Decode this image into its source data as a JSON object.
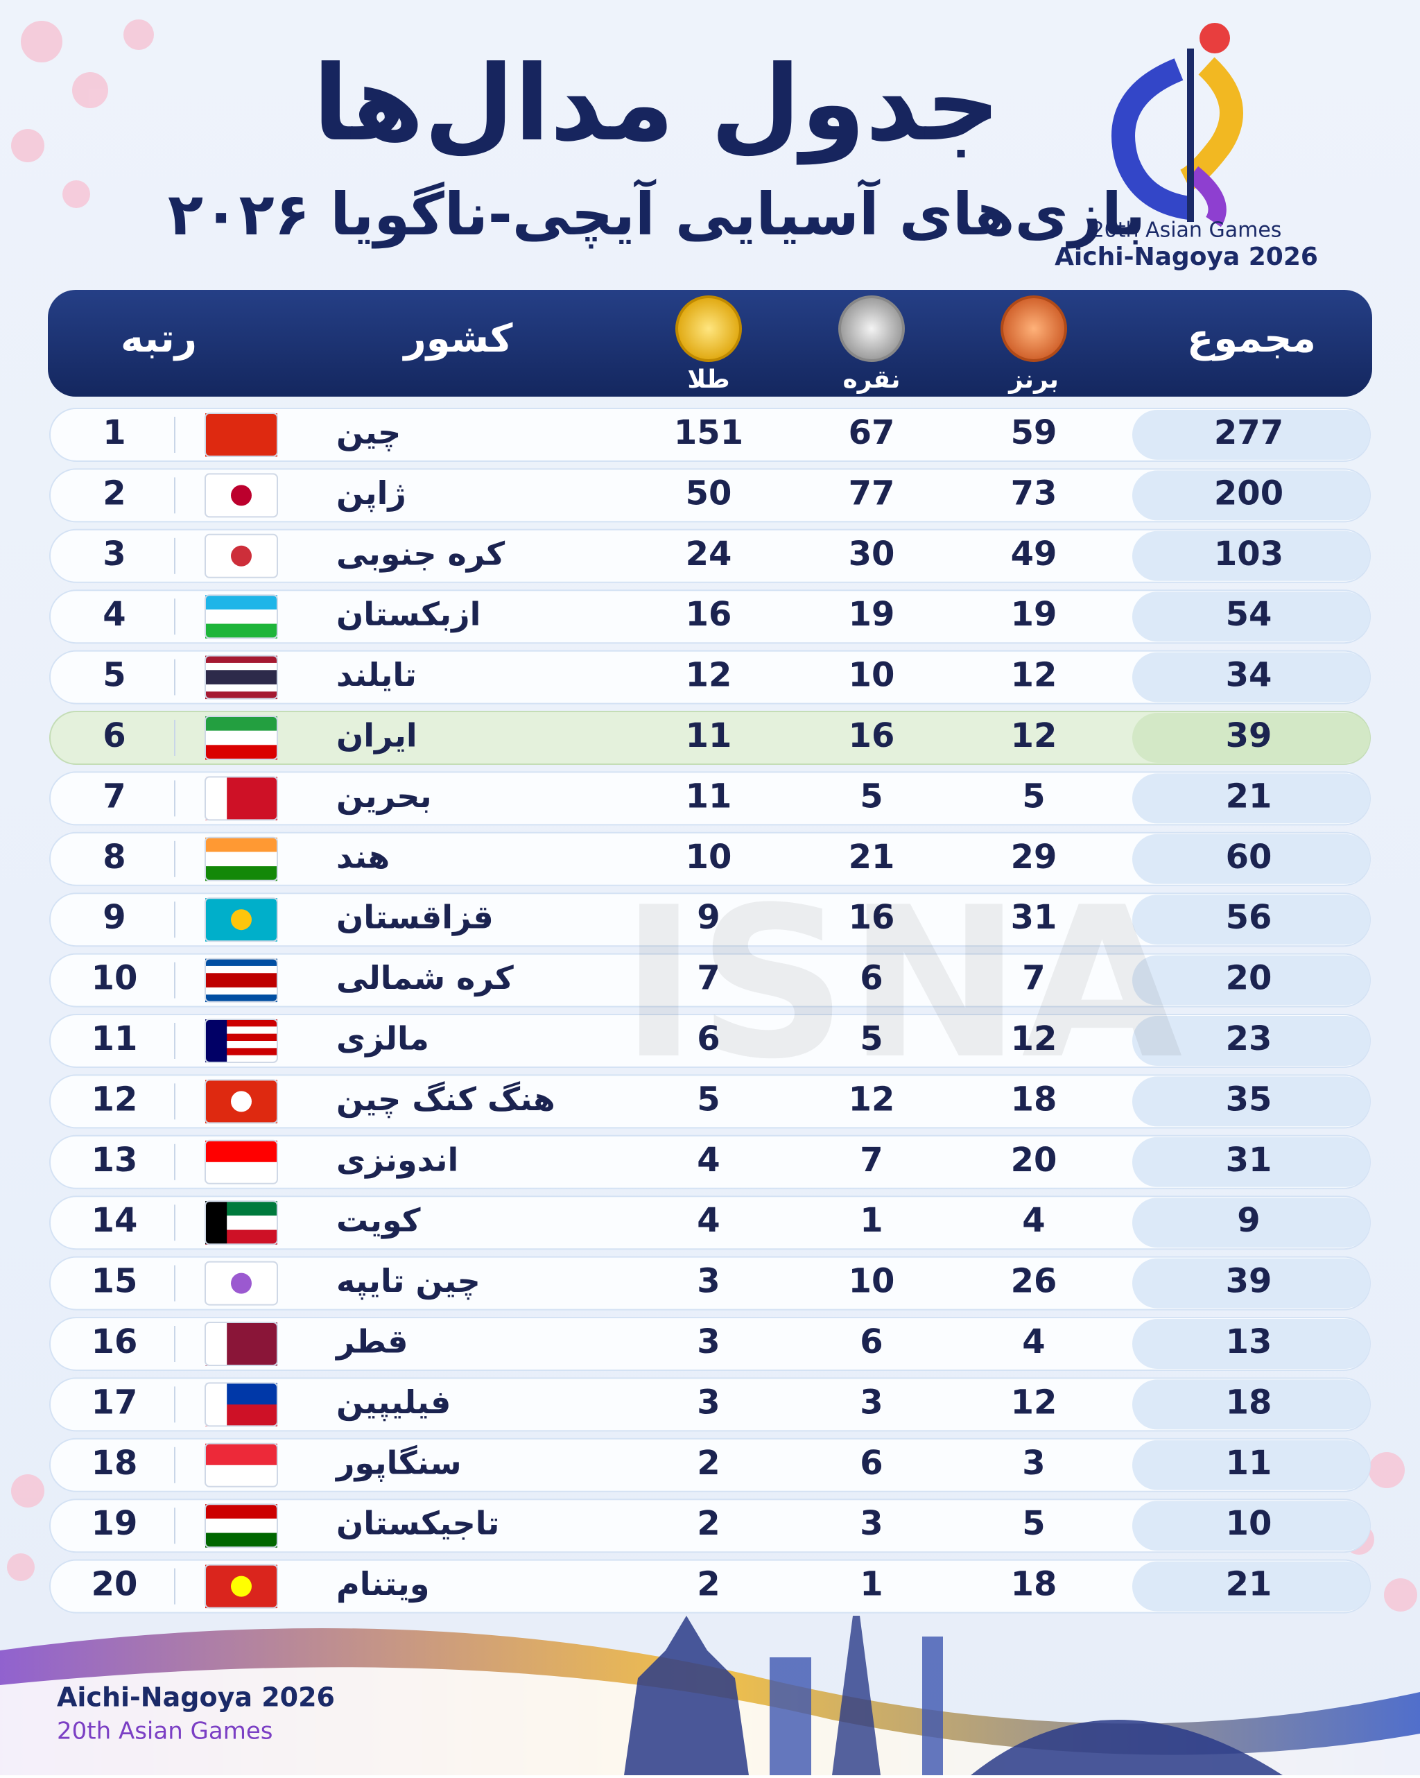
{
  "header": {
    "title": "جدول مدال‌ها",
    "subtitle": "بازی‌های آسیایی آیچی-ناگویا ۲۰۲۶"
  },
  "logo": {
    "line1": "20th Asian Games",
    "line2": "Aichi-Nagoya 2026"
  },
  "table": {
    "columns": [
      "رتبه",
      "کشور",
      "طلا",
      "نقره",
      "برنز",
      "مجموع"
    ],
    "rows": [
      [
        1,
        "چین",
        151,
        67,
        59,
        277
      ],
      [
        2,
        "ژاپن",
        50,
        77,
        73,
        200
      ],
      [
        3,
        "کره جنوبی",
        24,
        30,
        49,
        103
      ],
      [
        4,
        "ازبکستان",
        16,
        19,
        19,
        54
      ],
      [
        5,
        "تایلند",
        12,
        10,
        12,
        34
      ],
      [
        6,
        "ایران",
        11,
        16,
        12,
        39
      ],
      [
        7,
        "بحرین",
        11,
        5,
        5,
        21
      ],
      [
        8,
        "هند",
        10,
        21,
        29,
        60
      ],
      [
        9,
        "قزاقستان",
        9,
        16,
        31,
        56
      ],
      [
        10,
        "کره شمالی",
        7,
        6,
        7,
        20
      ],
      [
        11,
        "مالزی",
        6,
        5,
        12,
        23
      ],
      [
        12,
        "هنگ کنگ چین",
        5,
        12,
        18,
        35
      ],
      [
        13,
        "اندونزی",
        4,
        7,
        20,
        31
      ],
      [
        14,
        "کویت",
        4,
        1,
        4,
        9
      ],
      [
        15,
        "چین تایپه",
        3,
        10,
        26,
        39
      ],
      [
        16,
        "قطر",
        3,
        6,
        4,
        13
      ],
      [
        17,
        "فیلیپین",
        3,
        3,
        12,
        18
      ],
      [
        18,
        "سنگاپور",
        2,
        6,
        3,
        11
      ],
      [
        19,
        "تاجیکستان",
        2,
        3,
        5,
        10
      ],
      [
        20,
        "ویتنام",
        2,
        1,
        18,
        21
      ]
    ]
  },
  "watermark": "ISNA",
  "footer": {
    "line1": "Aichi-Nagoya 2026",
    "line2": "20th Asian Games"
  }
}
